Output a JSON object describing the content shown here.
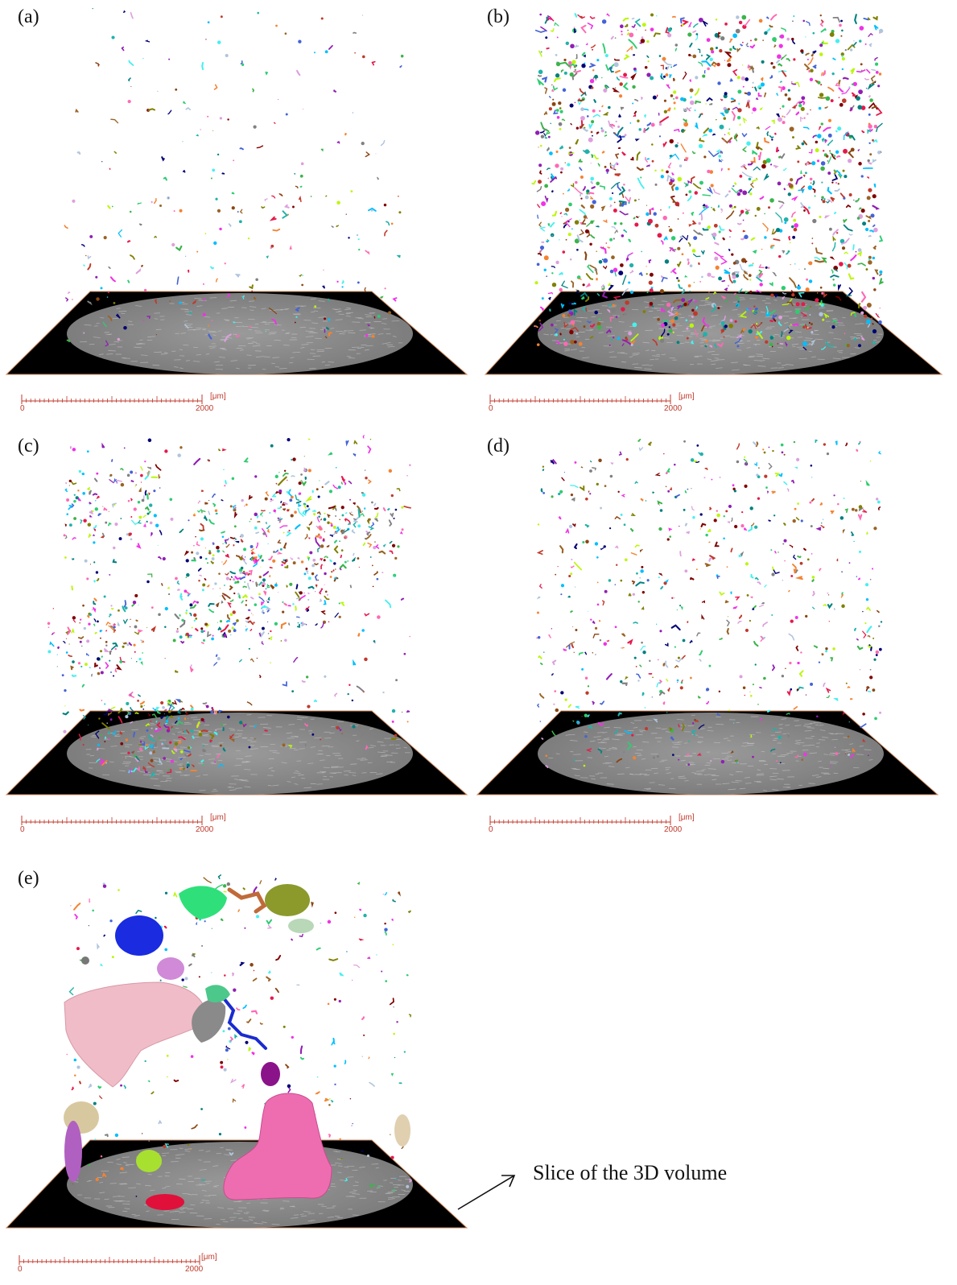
{
  "panels": [
    {
      "label": "(a)",
      "density": "low"
    },
    {
      "label": "(b)",
      "density": "very-high"
    },
    {
      "label": "(c)",
      "density": "high-clustered"
    },
    {
      "label": "(d)",
      "density": "medium"
    },
    {
      "label": "(e)",
      "density": "zoomed"
    }
  ],
  "scale_bar": {
    "start": "0",
    "end": "2000",
    "unit": "[μm]"
  },
  "annotation": {
    "text": "Slice of the 3D volume"
  },
  "colors": {
    "floor": "#000000",
    "disc": "#8f8f8f",
    "scale": "#c0392b",
    "rim": "#d08a60"
  }
}
